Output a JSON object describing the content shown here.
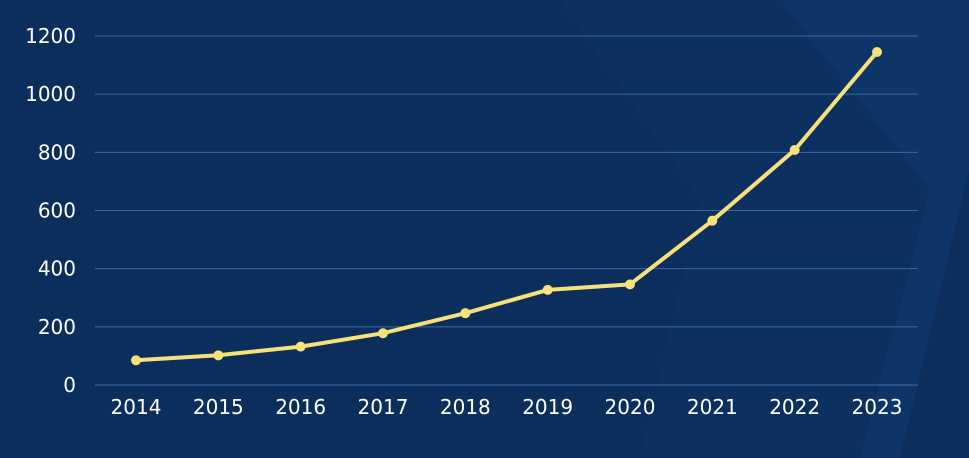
{
  "colors": {
    "background": "#0b2e5c",
    "background_accent": "#113a6e",
    "line": "#f7e27a",
    "gridline": "#3d6aa6",
    "tick_label": "#ffffff"
  },
  "chart_data": {
    "type": "line",
    "title": "",
    "xlabel": "",
    "ylabel": "",
    "categories": [
      "2014",
      "2015",
      "2016",
      "2017",
      "2018",
      "2019",
      "2020",
      "2021",
      "2022",
      "2023"
    ],
    "values": [
      85,
      102,
      132,
      178,
      247,
      327,
      346,
      565,
      808,
      1145
    ],
    "ylim": [
      0,
      1200
    ],
    "yticks": [
      0,
      200,
      400,
      600,
      800,
      1000,
      1200
    ],
    "grid": true,
    "legend": "none",
    "markers": true
  }
}
